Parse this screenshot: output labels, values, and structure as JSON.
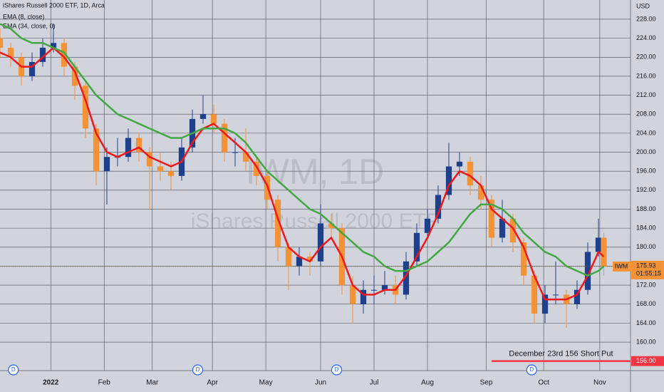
{
  "chart_data": {
    "type": "candlestick",
    "title": "iShares Russell 2000 ETF, 1D, Arca",
    "currency": "USD",
    "watermark": {
      "symbol": "IWM, 1D",
      "name": "iShares Russell 2000 ETF"
    },
    "up_color": "#1e3f8c",
    "down_color": "#f39237",
    "x": [
      0,
      4,
      8,
      12,
      16,
      20,
      24,
      28,
      32,
      36,
      40,
      44,
      48,
      52,
      56,
      60,
      64,
      68,
      72,
      76,
      80,
      84,
      88,
      92,
      96,
      100,
      104,
      108,
      112,
      116,
      120,
      124,
      128,
      132,
      136,
      140,
      144,
      148,
      152,
      156,
      160,
      164,
      168,
      172,
      176,
      180,
      184,
      188,
      192,
      196,
      200,
      204,
      208,
      212,
      216,
      220,
      224,
      226
    ],
    "open": [
      224,
      222,
      220,
      216,
      219,
      222,
      223,
      218,
      214,
      205,
      196,
      199,
      199,
      203,
      200,
      197,
      196,
      195,
      201,
      207,
      208,
      206,
      200,
      200,
      198,
      195,
      190,
      180,
      176,
      178,
      177,
      185,
      184,
      172,
      168,
      171,
      171,
      172,
      170,
      177,
      183,
      186,
      191,
      197,
      198,
      193,
      190,
      182,
      186,
      181,
      174,
      166,
      170,
      170,
      168,
      171,
      179,
      182
    ],
    "high": [
      226,
      223,
      221,
      221,
      224,
      227,
      224,
      219,
      215,
      206,
      201,
      203,
      205,
      204,
      201,
      200,
      198,
      203,
      209,
      212,
      210,
      207,
      203,
      205,
      199,
      196,
      191,
      181,
      180,
      179,
      189,
      187,
      185,
      174,
      173,
      174,
      175,
      174,
      179,
      185,
      188,
      193,
      202,
      200,
      199,
      195,
      191,
      190,
      187,
      182,
      175,
      172,
      177,
      171,
      173,
      181,
      186,
      183
    ],
    "low": [
      220,
      218,
      214,
      215,
      218,
      221,
      216,
      211,
      203,
      193,
      189,
      197,
      198,
      198,
      188,
      194,
      192,
      194,
      200,
      206,
      204,
      198,
      197,
      196,
      193,
      188,
      177,
      171,
      174,
      174,
      176,
      182,
      170,
      164,
      166,
      168,
      170,
      168,
      169,
      176,
      182,
      185,
      190,
      195,
      191,
      188,
      180,
      181,
      179,
      172,
      164,
      164,
      168,
      163,
      167,
      170,
      178,
      174
    ],
    "close": [
      222,
      220,
      216,
      219,
      222,
      223,
      218,
      214,
      205,
      196,
      199,
      199,
      203,
      200,
      197,
      196,
      195,
      201,
      207,
      208,
      206,
      200,
      200,
      198,
      195,
      190,
      180,
      176,
      178,
      177,
      185,
      184,
      172,
      168,
      171,
      171,
      172,
      170,
      177,
      183,
      186,
      191,
      197,
      198,
      193,
      190,
      182,
      186,
      181,
      174,
      166,
      170,
      170,
      168,
      171,
      179,
      182,
      175.93
    ],
    "series": [
      {
        "name": "EMA (8, close)",
        "color": "#f0181b",
        "values": [
          221,
          220,
          218,
          218,
          220,
          222,
          220,
          217,
          211,
          204,
          200,
          199,
          200,
          201,
          199,
          198,
          197,
          198,
          202,
          205,
          206,
          204,
          202,
          200,
          197,
          193,
          186,
          180,
          178,
          177,
          180,
          182,
          178,
          172,
          170,
          170,
          171,
          171,
          174,
          178,
          182,
          187,
          193,
          196,
          195,
          193,
          188,
          186,
          184,
          180,
          174,
          169,
          169,
          169,
          170,
          174,
          179,
          178
        ]
      },
      {
        "name": "EMA (34, close, 0)",
        "color": "#43a843",
        "values": [
          227,
          226,
          224,
          223,
          223,
          222,
          221,
          218,
          215,
          212,
          210,
          208,
          207,
          206,
          205,
          204,
          203,
          203,
          204,
          205,
          205,
          205,
          204,
          202,
          199,
          196,
          194,
          192,
          190,
          188,
          187,
          185,
          183,
          181,
          179,
          178,
          176,
          175,
          175,
          176,
          177,
          179,
          181,
          184,
          187,
          189,
          189,
          188,
          186,
          183,
          181,
          179,
          178,
          176,
          175,
          174,
          175,
          176
        ]
      }
    ],
    "price_tag": {
      "symbol": "IWM",
      "countdown": "01:55:15"
    },
    "annotation": {
      "text": "December 23rd 156 Short Put",
      "level": {
        "value": 156,
        "label": "156.00"
      },
      "x": 184
    },
    "events": [
      {
        "x": 5,
        "label": "D"
      },
      {
        "x": 74,
        "label": "D"
      },
      {
        "x": 126,
        "label": "D"
      },
      {
        "x": 199,
        "label": "D"
      }
    ],
    "xlim": [
      0,
      236
    ],
    "ylim": [
      154,
      232.05
    ],
    "xticks": [
      {
        "value": 19,
        "label": "2022"
      },
      {
        "value": 39,
        "label": "Feb"
      },
      {
        "value": 57,
        "label": "Mar"
      },
      {
        "value": 79.5,
        "label": "Apr"
      },
      {
        "value": 99.5,
        "label": "May"
      },
      {
        "value": 120,
        "label": "Jun"
      },
      {
        "value": 140,
        "label": "Jul"
      },
      {
        "value": 160,
        "label": "Aug"
      },
      {
        "value": 182,
        "label": "Sep"
      },
      {
        "value": 203.5,
        "label": "Oct"
      },
      {
        "value": 224.5,
        "label": "Nov"
      }
    ],
    "yticks": [
      {
        "value": 160,
        "label": "160.00"
      },
      {
        "value": 164,
        "label": "164.00"
      },
      {
        "value": 168,
        "label": "168.00"
      },
      {
        "value": 172,
        "label": "172.00"
      },
      {
        "value": 176,
        "label": "176.00"
      },
      {
        "value": 180,
        "label": "180.00"
      },
      {
        "value": 184,
        "label": "184.00"
      },
      {
        "value": 188,
        "label": "188.00"
      },
      {
        "value": 192,
        "label": "192.00"
      },
      {
        "value": 196,
        "label": "196.00"
      },
      {
        "value": 200,
        "label": "200.00"
      },
      {
        "value": 204,
        "label": "204.00"
      },
      {
        "value": 208,
        "label": "208.00"
      },
      {
        "value": 212,
        "label": "212.00"
      },
      {
        "value": 216,
        "label": "216.00"
      },
      {
        "value": 220,
        "label": "220.00"
      },
      {
        "value": 224,
        "label": "224.00"
      },
      {
        "value": 228,
        "label": "228.00"
      }
    ],
    "grid": true
  }
}
